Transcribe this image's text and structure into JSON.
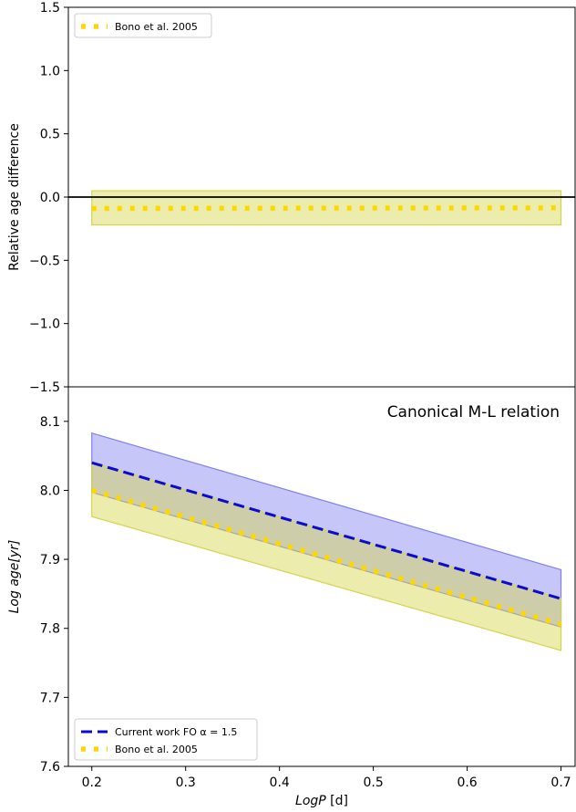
{
  "chart_data": [
    {
      "type": "line",
      "panel": "top",
      "ylabel": "Relative age difference",
      "xlim": [
        0.175,
        0.715
      ],
      "ylim": [
        -1.5,
        1.5
      ],
      "yticks": [
        -1.5,
        -1.0,
        -0.5,
        0.0,
        0.5,
        1.0,
        1.5
      ],
      "ytick_labels": [
        "−1.5",
        "−1.0",
        "−0.5",
        "0.0",
        "0.5",
        "1.0",
        "1.5"
      ],
      "hline": 0.0,
      "legend_position": "upper-left",
      "series": [
        {
          "name": "Bono et al. 2005",
          "color": "#ffd700",
          "style": "dotted",
          "x": [
            0.2,
            0.7
          ],
          "y": [
            -0.09,
            -0.085
          ],
          "band": {
            "lower": [
              -0.22,
              -0.22
            ],
            "upper": [
              0.05,
              0.05
            ],
            "color": "#d4d44a"
          }
        }
      ]
    },
    {
      "type": "line",
      "panel": "bottom",
      "annotation": "Canonical M-L relation",
      "xlabel_main": "LogP",
      "xlabel_unit": " [d]",
      "ylabel_main": "Log age",
      "ylabel_unit": "[yr]",
      "xlim": [
        0.175,
        0.715
      ],
      "ylim": [
        7.6,
        8.15
      ],
      "xticks": [
        0.2,
        0.3,
        0.4,
        0.5,
        0.6,
        0.7
      ],
      "xtick_labels": [
        "0.2",
        "0.3",
        "0.4",
        "0.5",
        "0.6",
        "0.7"
      ],
      "yticks": [
        7.6,
        7.7,
        7.8,
        7.9,
        8.0,
        8.1
      ],
      "ytick_labels": [
        "7.6",
        "7.7",
        "7.8",
        "7.9",
        "8.0",
        "8.1"
      ],
      "legend_position": "lower-left",
      "series": [
        {
          "name": "Current work FO α = 1.5",
          "color": "#0a0ad2",
          "style": "dashed",
          "x": [
            0.2,
            0.7
          ],
          "y": [
            8.04,
            7.843
          ],
          "band": {
            "lower": [
              7.997,
              7.802
            ],
            "upper": [
              8.083,
              7.885
            ],
            "color": "#8080f0"
          }
        },
        {
          "name": "Bono et al. 2005",
          "color": "#ffd700",
          "style": "dotted",
          "x": [
            0.2,
            0.7
          ],
          "y": [
            8.0,
            7.806
          ],
          "band": {
            "lower": [
              7.962,
              7.768
            ],
            "upper": [
              8.04,
              7.843
            ],
            "color": "#d4d44a"
          }
        }
      ]
    }
  ]
}
